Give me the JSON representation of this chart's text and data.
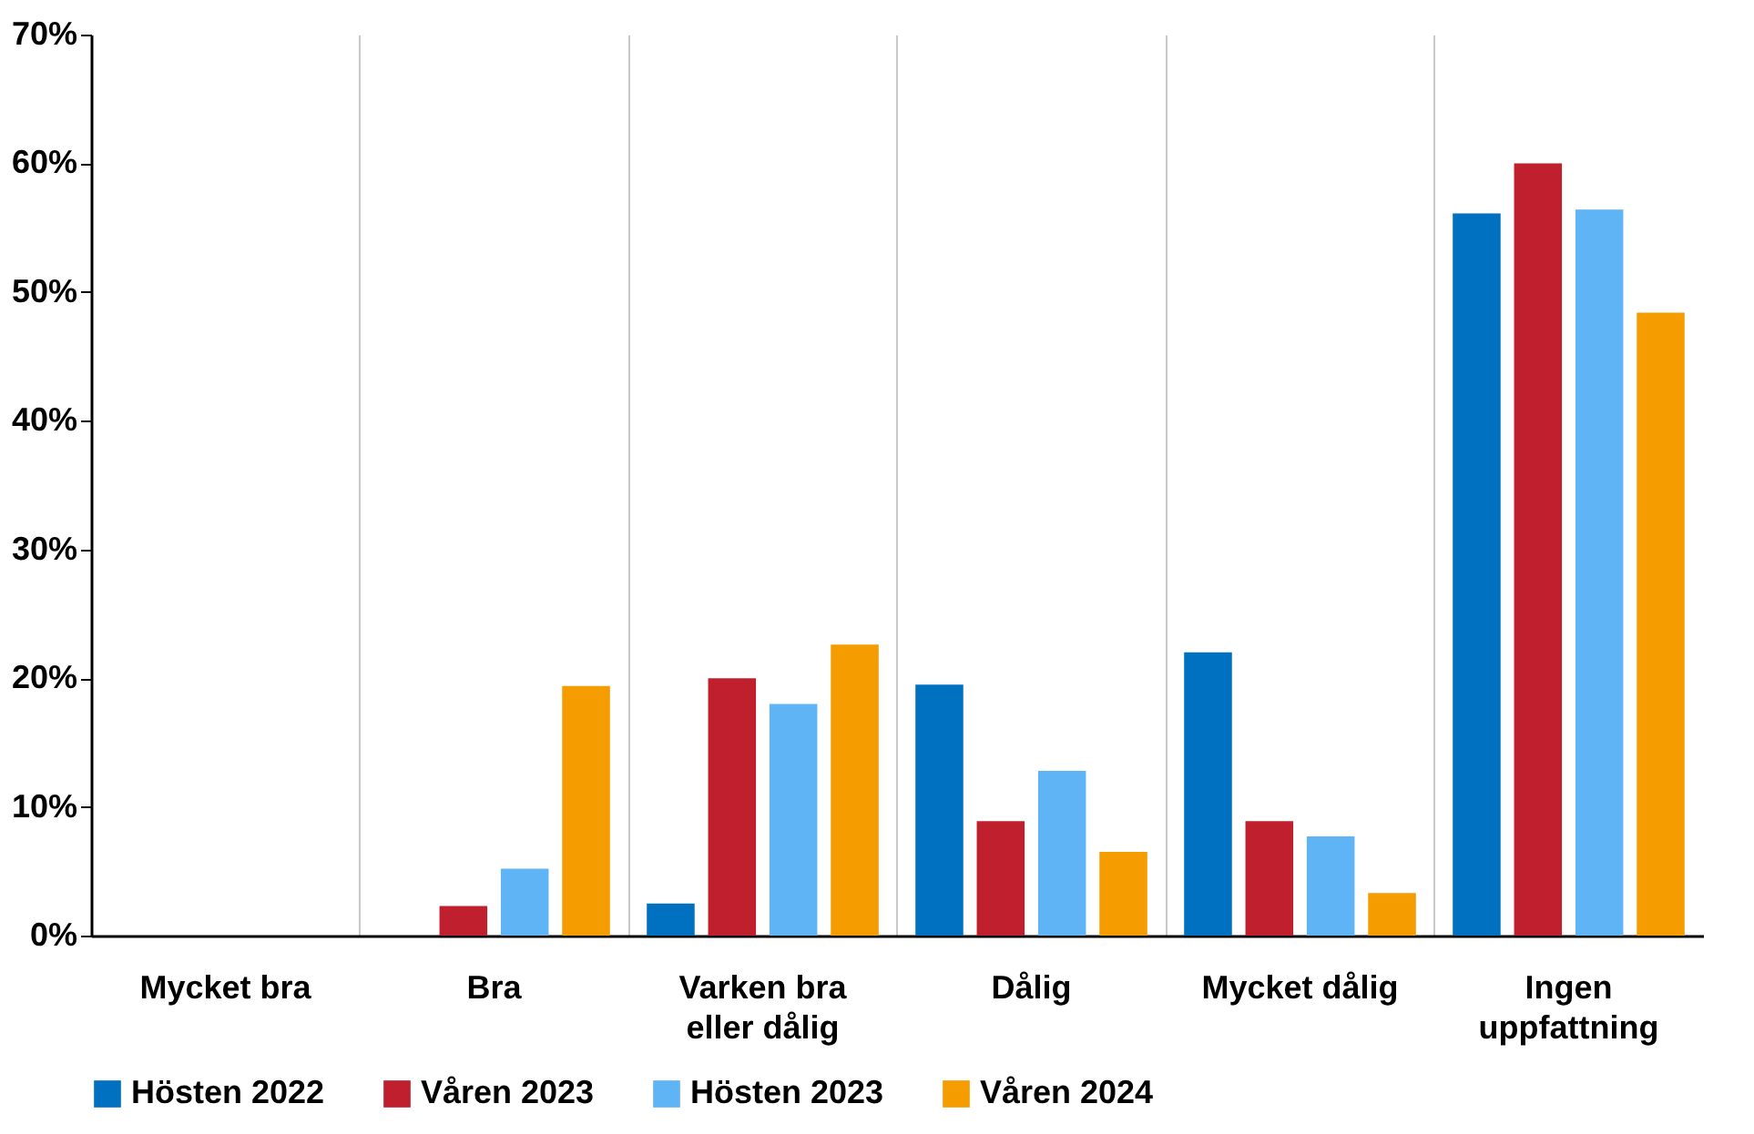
{
  "chart_data": {
    "type": "bar",
    "categories": [
      "Mycket bra",
      "Bra",
      "Varken bra eller dålig",
      "Dålig",
      "Mycket dålig",
      "Ingen uppfattning"
    ],
    "series": [
      {
        "name": "Hösten 2022",
        "color": "#0070c0",
        "values": [
          0,
          0,
          2.5,
          19.5,
          22.0,
          56.1
        ]
      },
      {
        "name": "Våren 2023",
        "color": "#c0202e",
        "values": [
          0,
          2.3,
          20.0,
          8.9,
          8.9,
          60.0
        ]
      },
      {
        "name": "Hösten 2023",
        "color": "#5fb4f5",
        "values": [
          0,
          5.2,
          18.0,
          12.8,
          7.7,
          56.4
        ]
      },
      {
        "name": "Våren 2024",
        "color": "#f59c00",
        "values": [
          0,
          19.4,
          22.6,
          6.5,
          3.3,
          48.4
        ]
      }
    ],
    "ylim": [
      0,
      70
    ],
    "yticks": [
      {
        "value": 0,
        "label": "0%"
      },
      {
        "value": 10,
        "label": "10%"
      },
      {
        "value": 20,
        "label": "20%"
      },
      {
        "value": 30,
        "label": "30%"
      },
      {
        "value": 40,
        "label": "40%"
      },
      {
        "value": 50,
        "label": "50%"
      },
      {
        "value": 60,
        "label": "60%"
      },
      {
        "value": 70,
        "label": "70%"
      }
    ],
    "grid": "x",
    "legend": "bottom"
  }
}
